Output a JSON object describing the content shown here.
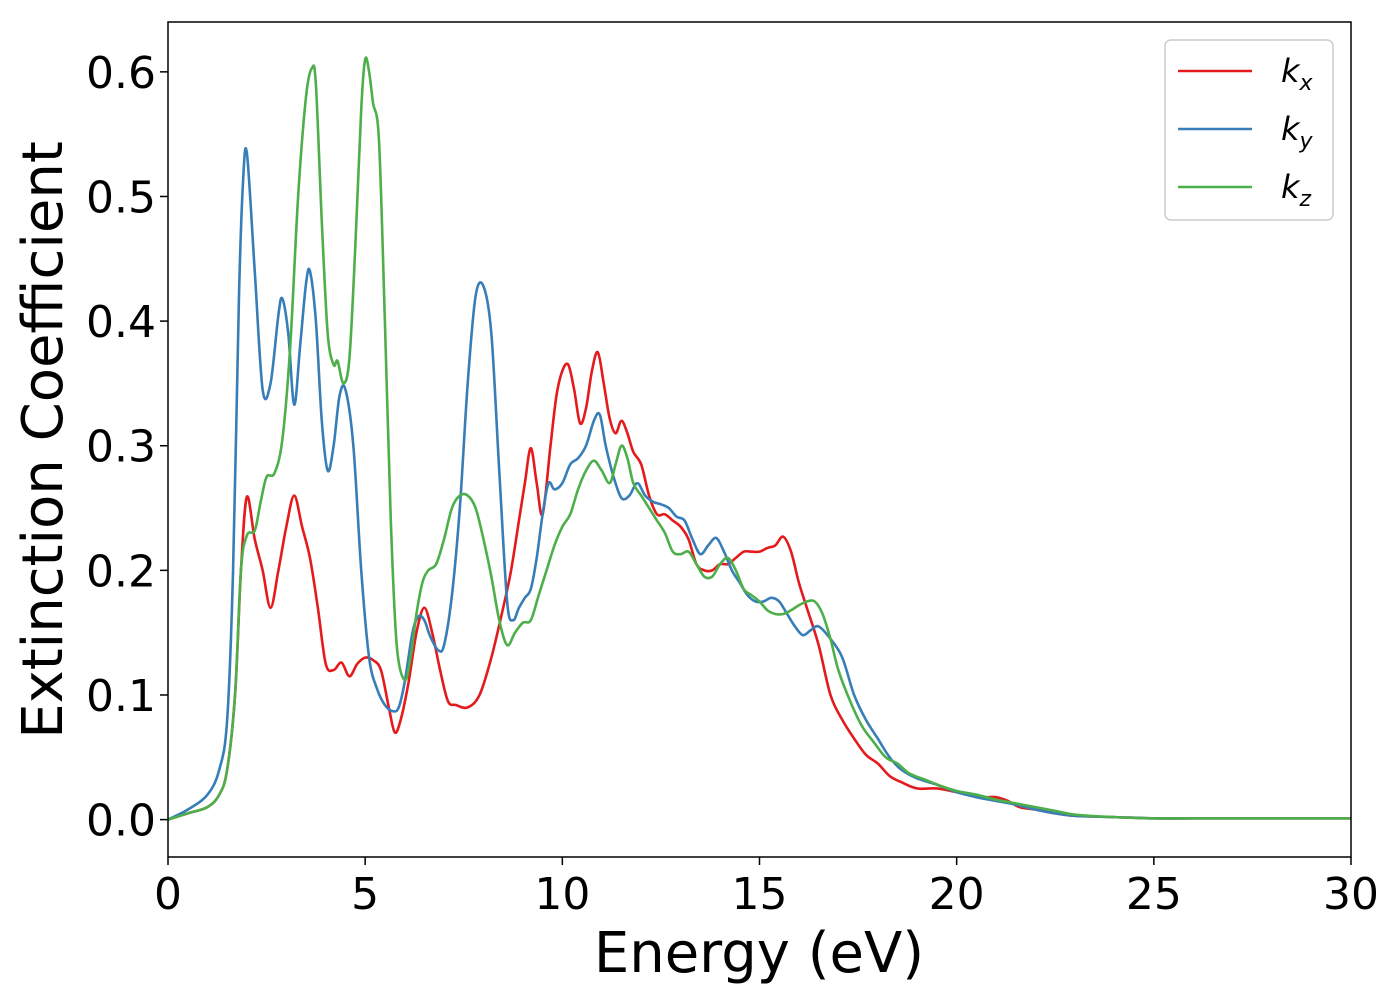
{
  "chart_data": {
    "type": "line",
    "xlabel": "Energy (eV)",
    "ylabel": "Extinction Coefficient",
    "xlim": [
      0,
      30
    ],
    "ylim": [
      -0.03,
      0.64
    ],
    "xticks": [
      0,
      5,
      10,
      15,
      20,
      25,
      30
    ],
    "xtick_labels": [
      "0",
      "5",
      "10",
      "15",
      "20",
      "25",
      "30"
    ],
    "yticks": [
      0.0,
      0.1,
      0.2,
      0.3,
      0.4,
      0.5,
      0.6
    ],
    "ytick_labels": [
      "0.0",
      "0.1",
      "0.2",
      "0.3",
      "0.4",
      "0.5",
      "0.6"
    ],
    "grid": false,
    "legend_position": "top-right",
    "series": [
      {
        "name": "k_x",
        "label_main": "k",
        "label_sub": "x",
        "color": "#e41a1c",
        "x": [
          0,
          0.5,
          1.0,
          1.3,
          1.5,
          1.7,
          1.85,
          2.0,
          2.2,
          2.4,
          2.6,
          2.8,
          3.0,
          3.2,
          3.4,
          3.6,
          3.8,
          4.0,
          4.2,
          4.4,
          4.6,
          4.8,
          5.0,
          5.2,
          5.4,
          5.6,
          5.75,
          5.9,
          6.1,
          6.3,
          6.5,
          6.7,
          6.9,
          7.1,
          7.3,
          7.6,
          7.9,
          8.2,
          8.5,
          8.7,
          8.9,
          9.05,
          9.2,
          9.35,
          9.5,
          9.7,
          9.85,
          10.0,
          10.15,
          10.3,
          10.45,
          10.6,
          10.75,
          10.9,
          11.05,
          11.2,
          11.35,
          11.5,
          11.65,
          11.8,
          12.0,
          12.2,
          12.4,
          12.6,
          12.8,
          13.0,
          13.2,
          13.4,
          13.6,
          13.8,
          14.0,
          14.2,
          14.4,
          14.6,
          14.8,
          15.0,
          15.2,
          15.4,
          15.6,
          15.8,
          16.0,
          16.2,
          16.5,
          16.8,
          17.1,
          17.4,
          17.7,
          18.0,
          18.3,
          18.6,
          19.0,
          19.5,
          20.0,
          20.3,
          20.6,
          20.8,
          21.0,
          21.3,
          21.6,
          22.0,
          22.5,
          23.0,
          24.0,
          25.0,
          26.0,
          27.0,
          28.0,
          29.0,
          30.0
        ],
        "y": [
          0.0,
          0.005,
          0.01,
          0.02,
          0.04,
          0.1,
          0.2,
          0.259,
          0.225,
          0.2,
          0.17,
          0.2,
          0.235,
          0.26,
          0.235,
          0.21,
          0.17,
          0.125,
          0.12,
          0.126,
          0.115,
          0.125,
          0.13,
          0.128,
          0.12,
          0.09,
          0.07,
          0.08,
          0.11,
          0.15,
          0.17,
          0.15,
          0.12,
          0.095,
          0.092,
          0.09,
          0.1,
          0.13,
          0.17,
          0.2,
          0.24,
          0.27,
          0.298,
          0.27,
          0.245,
          0.3,
          0.34,
          0.36,
          0.365,
          0.345,
          0.318,
          0.33,
          0.36,
          0.375,
          0.35,
          0.322,
          0.31,
          0.32,
          0.31,
          0.295,
          0.285,
          0.26,
          0.245,
          0.245,
          0.24,
          0.235,
          0.225,
          0.205,
          0.2,
          0.2,
          0.205,
          0.205,
          0.21,
          0.215,
          0.215,
          0.215,
          0.218,
          0.22,
          0.227,
          0.215,
          0.19,
          0.17,
          0.14,
          0.1,
          0.08,
          0.065,
          0.052,
          0.045,
          0.035,
          0.03,
          0.025,
          0.025,
          0.022,
          0.02,
          0.018,
          0.018,
          0.018,
          0.015,
          0.01,
          0.008,
          0.005,
          0.003,
          0.002,
          0.001,
          0.001,
          0.001,
          0.001,
          0.001,
          0.001
        ]
      },
      {
        "name": "k_y",
        "label_main": "k",
        "label_sub": "y",
        "color": "#377eb8",
        "x": [
          0,
          0.5,
          1.0,
          1.3,
          1.5,
          1.65,
          1.8,
          1.9,
          2.0,
          2.2,
          2.4,
          2.6,
          2.8,
          2.9,
          3.05,
          3.2,
          3.35,
          3.5,
          3.6,
          3.75,
          3.9,
          4.05,
          4.2,
          4.35,
          4.5,
          4.7,
          4.9,
          5.1,
          5.3,
          5.5,
          5.7,
          5.85,
          6.0,
          6.2,
          6.35,
          6.5,
          6.65,
          6.85,
          7.0,
          7.2,
          7.4,
          7.6,
          7.8,
          8.0,
          8.2,
          8.4,
          8.6,
          8.75,
          8.9,
          9.05,
          9.2,
          9.35,
          9.5,
          9.65,
          9.8,
          10.0,
          10.2,
          10.4,
          10.6,
          10.8,
          10.95,
          11.1,
          11.3,
          11.5,
          11.7,
          11.9,
          12.1,
          12.3,
          12.5,
          12.7,
          12.9,
          13.1,
          13.3,
          13.5,
          13.7,
          13.9,
          14.1,
          14.3,
          14.5,
          14.7,
          14.9,
          15.1,
          15.3,
          15.5,
          15.7,
          15.9,
          16.1,
          16.3,
          16.5,
          16.8,
          17.1,
          17.4,
          17.7,
          18.0,
          18.3,
          18.6,
          19.0,
          19.5,
          20.0,
          20.5,
          21.0,
          21.5,
          22.0,
          22.5,
          23.0,
          24.0,
          25.0,
          26.0,
          27.0,
          28.0,
          29.0,
          30.0
        ],
        "y": [
          0.0,
          0.008,
          0.02,
          0.04,
          0.08,
          0.2,
          0.42,
          0.51,
          0.535,
          0.44,
          0.345,
          0.35,
          0.405,
          0.418,
          0.39,
          0.333,
          0.38,
          0.43,
          0.44,
          0.4,
          0.32,
          0.28,
          0.3,
          0.34,
          0.345,
          0.3,
          0.2,
          0.13,
          0.105,
          0.092,
          0.087,
          0.09,
          0.11,
          0.15,
          0.163,
          0.16,
          0.147,
          0.136,
          0.14,
          0.18,
          0.25,
          0.35,
          0.42,
          0.428,
          0.39,
          0.28,
          0.175,
          0.16,
          0.17,
          0.178,
          0.185,
          0.21,
          0.245,
          0.27,
          0.265,
          0.27,
          0.285,
          0.29,
          0.3,
          0.32,
          0.325,
          0.3,
          0.275,
          0.258,
          0.26,
          0.27,
          0.26,
          0.255,
          0.253,
          0.25,
          0.243,
          0.24,
          0.225,
          0.213,
          0.22,
          0.226,
          0.215,
          0.2,
          0.19,
          0.18,
          0.175,
          0.175,
          0.178,
          0.175,
          0.165,
          0.155,
          0.148,
          0.152,
          0.155,
          0.145,
          0.13,
          0.1,
          0.08,
          0.065,
          0.05,
          0.04,
          0.033,
          0.028,
          0.022,
          0.018,
          0.015,
          0.012,
          0.008,
          0.005,
          0.003,
          0.002,
          0.001,
          0.001,
          0.001,
          0.001,
          0.001,
          0.001
        ]
      },
      {
        "name": "k_z",
        "label_main": "k",
        "label_sub": "z",
        "color": "#4daf4a",
        "x": [
          0,
          0.5,
          1.0,
          1.3,
          1.5,
          1.7,
          1.85,
          2.0,
          2.2,
          2.35,
          2.5,
          2.7,
          2.9,
          3.1,
          3.3,
          3.5,
          3.65,
          3.75,
          3.9,
          4.05,
          4.2,
          4.3,
          4.45,
          4.6,
          4.75,
          4.9,
          5.0,
          5.1,
          5.2,
          5.35,
          5.5,
          5.65,
          5.8,
          6.0,
          6.15,
          6.3,
          6.45,
          6.6,
          6.8,
          7.0,
          7.2,
          7.4,
          7.6,
          7.8,
          8.0,
          8.2,
          8.4,
          8.6,
          8.8,
          9.0,
          9.2,
          9.4,
          9.6,
          9.8,
          10.0,
          10.2,
          10.4,
          10.6,
          10.8,
          11.0,
          11.2,
          11.35,
          11.5,
          11.65,
          11.8,
          12.0,
          12.2,
          12.4,
          12.6,
          12.8,
          13.0,
          13.2,
          13.4,
          13.6,
          13.8,
          14.0,
          14.2,
          14.4,
          14.6,
          14.8,
          15.0,
          15.2,
          15.4,
          15.6,
          15.8,
          16.0,
          16.2,
          16.4,
          16.6,
          16.8,
          17.0,
          17.3,
          17.6,
          17.9,
          18.2,
          18.5,
          18.8,
          19.2,
          19.6,
          20.0,
          20.5,
          21.0,
          21.5,
          22.0,
          22.5,
          23.0,
          24.0,
          25.0,
          26.0,
          27.0,
          28.0,
          29.0,
          30.0
        ],
        "y": [
          0.0,
          0.005,
          0.01,
          0.02,
          0.04,
          0.1,
          0.2,
          0.228,
          0.232,
          0.255,
          0.275,
          0.278,
          0.305,
          0.38,
          0.5,
          0.58,
          0.603,
          0.59,
          0.48,
          0.39,
          0.365,
          0.368,
          0.35,
          0.37,
          0.46,
          0.57,
          0.61,
          0.6,
          0.575,
          0.545,
          0.4,
          0.24,
          0.14,
          0.112,
          0.13,
          0.165,
          0.19,
          0.2,
          0.205,
          0.225,
          0.25,
          0.26,
          0.26,
          0.25,
          0.225,
          0.195,
          0.16,
          0.14,
          0.15,
          0.158,
          0.16,
          0.18,
          0.2,
          0.22,
          0.235,
          0.245,
          0.265,
          0.28,
          0.288,
          0.28,
          0.27,
          0.285,
          0.3,
          0.29,
          0.27,
          0.26,
          0.25,
          0.24,
          0.23,
          0.215,
          0.213,
          0.215,
          0.205,
          0.195,
          0.195,
          0.205,
          0.21,
          0.2,
          0.185,
          0.18,
          0.175,
          0.168,
          0.165,
          0.165,
          0.168,
          0.172,
          0.175,
          0.175,
          0.165,
          0.145,
          0.12,
          0.095,
          0.075,
          0.062,
          0.05,
          0.045,
          0.037,
          0.032,
          0.027,
          0.023,
          0.02,
          0.016,
          0.013,
          0.01,
          0.007,
          0.004,
          0.002,
          0.001,
          0.001,
          0.001,
          0.001,
          0.001,
          0.001
        ]
      }
    ]
  }
}
